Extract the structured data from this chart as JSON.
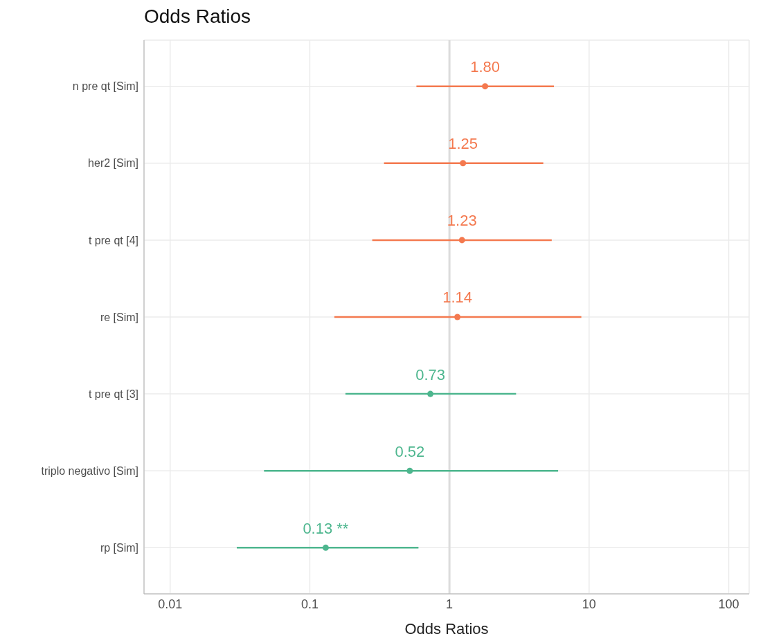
{
  "chart_data": {
    "type": "scatter",
    "orientation": "horizontal",
    "title": "Odds Ratios",
    "xlabel": "Odds Ratios",
    "categories": [
      "n pre qt [Sim]",
      "her2 [Sim]",
      "t pre qt [4]",
      "re [Sim]",
      "t pre qt [3]",
      "triplo negativo [Sim]",
      "rp [Sim]"
    ],
    "values": [
      1.8,
      1.25,
      1.23,
      1.14,
      0.73,
      0.52,
      0.13
    ],
    "errors": [
      [
        0.58,
        5.6
      ],
      [
        0.34,
        4.7
      ],
      [
        0.28,
        5.4
      ],
      [
        0.15,
        8.8
      ],
      [
        0.18,
        3.0
      ],
      [
        0.047,
        6.0
      ],
      [
        0.03,
        0.6
      ]
    ],
    "value_labels": [
      "1.80",
      "1.25",
      "1.23",
      "1.14",
      "0.73",
      "0.52",
      "0.13 **"
    ],
    "colors": [
      "#f4794f",
      "#f4794f",
      "#f4794f",
      "#f4794f",
      "#4db68e",
      "#4db68e",
      "#4db68e"
    ],
    "log": "x",
    "xlim": [
      0.0065,
      140
    ],
    "xticks": [
      0.01,
      0.1,
      1,
      10,
      100
    ],
    "ref_lines": [
      {
        "axis": "x",
        "value": 1,
        "color": "#dcdcdc"
      }
    ],
    "grid": true,
    "marker": "circle"
  }
}
